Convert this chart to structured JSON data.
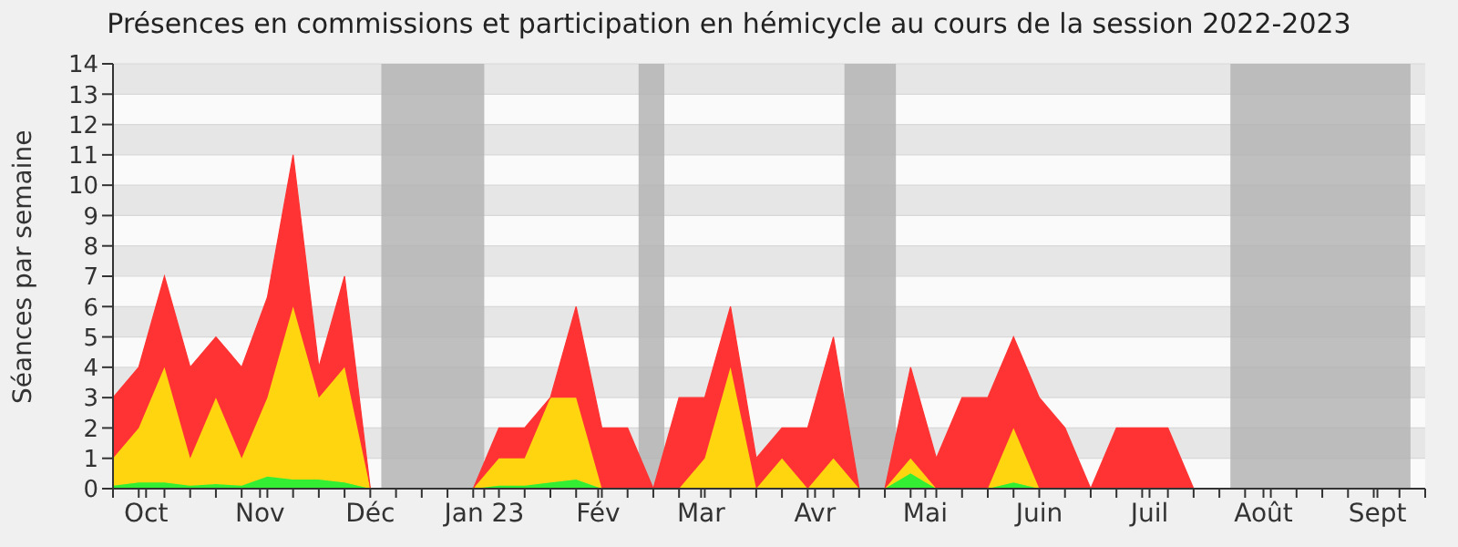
{
  "chart_data": {
    "type": "area",
    "stacked": true,
    "title": "Présences en commissions et participation en hémicycle au cours de la session 2022-2023",
    "ylabel": "Séances par semaine",
    "x": [
      "2022-09-22",
      "2022-09-29",
      "2022-10-06",
      "2022-10-13",
      "2022-10-20",
      "2022-10-27",
      "2022-11-03",
      "2022-11-10",
      "2022-11-17",
      "2022-11-24",
      "2022-12-01",
      "2022-12-08",
      "2022-12-15",
      "2022-12-22",
      "2022-12-29",
      "2023-01-05",
      "2023-01-12",
      "2023-01-19",
      "2023-01-26",
      "2023-02-02",
      "2023-02-09",
      "2023-02-16",
      "2023-02-23",
      "2023-03-02",
      "2023-03-09",
      "2023-03-16",
      "2023-03-23",
      "2023-03-30",
      "2023-04-06",
      "2023-04-13",
      "2023-04-20",
      "2023-04-27",
      "2023-05-04",
      "2023-05-11",
      "2023-05-18",
      "2023-05-25",
      "2023-06-01",
      "2023-06-08",
      "2023-06-15",
      "2023-06-22",
      "2023-06-29",
      "2023-07-06",
      "2023-07-13",
      "2023-07-20",
      "2023-07-27",
      "2023-08-03",
      "2023-08-10",
      "2023-08-17",
      "2023-08-24",
      "2023-08-31",
      "2023-09-07",
      "2023-09-14"
    ],
    "series": [
      {
        "color": "#33ee33",
        "values": [
          0.1,
          0.2,
          0.2,
          0.1,
          0.15,
          0.1,
          0.4,
          0.3,
          0.3,
          0.2,
          0,
          0,
          0,
          0,
          0,
          0.1,
          0.1,
          0.2,
          0.3,
          0,
          0,
          0,
          0,
          0,
          0,
          0,
          0,
          0,
          0,
          0,
          0,
          0.5,
          0,
          0,
          0,
          0.2,
          0,
          0,
          0,
          0,
          0,
          0,
          0,
          0,
          0,
          0,
          0,
          0,
          0,
          0,
          0,
          0
        ]
      },
      {
        "color": "#ffd510",
        "values": [
          0.9,
          1.8,
          3.8,
          0.9,
          2.85,
          0.9,
          2.6,
          5.7,
          2.7,
          3.8,
          0,
          0,
          0,
          0,
          0,
          0.9,
          0.9,
          2.8,
          2.7,
          0,
          0,
          0,
          0,
          1,
          4,
          0,
          1,
          0,
          1,
          0,
          0,
          0.5,
          0,
          0,
          0,
          1.8,
          0,
          0,
          0,
          0,
          0,
          0,
          0,
          0,
          0,
          0,
          0,
          0,
          0,
          0,
          0,
          0
        ]
      },
      {
        "color": "#ff3333",
        "values": [
          2,
          2,
          3,
          3,
          2,
          3,
          3.3,
          5,
          1,
          3,
          0,
          0,
          0,
          0,
          0,
          1,
          1,
          0,
          3,
          2,
          2,
          0,
          3,
          2,
          2,
          1,
          1,
          2,
          4,
          0,
          0,
          3,
          1,
          3,
          3,
          3,
          3,
          2,
          0,
          2,
          2,
          2,
          0,
          0,
          0,
          0,
          0,
          0,
          0,
          0,
          0,
          0
        ]
      }
    ],
    "xlim": [
      "2022-09-22",
      "2023-09-14"
    ],
    "xticks": [
      {
        "value": "2022-09-22",
        "label": null
      },
      {
        "value": "2022-09-29",
        "label": null
      },
      {
        "value": "2022-10-06",
        "label": null
      },
      {
        "value": "2022-10-13",
        "label": null
      },
      {
        "value": "2022-10-20",
        "label": null
      },
      {
        "value": "2022-10-27",
        "label": null
      },
      {
        "value": "2022-11-03",
        "label": null
      },
      {
        "value": "2022-11-10",
        "label": null
      },
      {
        "value": "2022-11-17",
        "label": null
      },
      {
        "value": "2022-11-24",
        "label": null
      },
      {
        "value": "2022-12-08",
        "label": null
      },
      {
        "value": "2022-12-15",
        "label": null
      },
      {
        "value": "2022-12-22",
        "label": null
      },
      {
        "value": "2022-12-29",
        "label": null
      },
      {
        "value": "2023-01-05",
        "label": null
      },
      {
        "value": "2023-01-12",
        "label": null
      },
      {
        "value": "2023-01-19",
        "label": null
      },
      {
        "value": "2023-01-26",
        "label": null
      },
      {
        "value": "2023-02-02",
        "label": null
      },
      {
        "value": "2023-02-09",
        "label": null
      },
      {
        "value": "2023-02-16",
        "label": null
      },
      {
        "value": "2023-02-23",
        "label": null
      },
      {
        "value": "2023-03-02",
        "label": null
      },
      {
        "value": "2023-03-09",
        "label": null
      },
      {
        "value": "2023-03-16",
        "label": null
      },
      {
        "value": "2023-03-23",
        "label": null
      },
      {
        "value": "2023-03-30",
        "label": null
      },
      {
        "value": "2023-04-06",
        "label": null
      },
      {
        "value": "2023-04-13",
        "label": null
      },
      {
        "value": "2023-04-20",
        "label": null
      },
      {
        "value": "2023-04-27",
        "label": null
      },
      {
        "value": "2023-05-04",
        "label": null
      },
      {
        "value": "2023-05-11",
        "label": null
      },
      {
        "value": "2023-05-18",
        "label": null
      },
      {
        "value": "2023-05-25",
        "label": null
      },
      {
        "value": "2023-06-08",
        "label": null
      },
      {
        "value": "2023-06-15",
        "label": null
      },
      {
        "value": "2023-06-22",
        "label": null
      },
      {
        "value": "2023-06-29",
        "label": null
      },
      {
        "value": "2023-07-06",
        "label": null
      },
      {
        "value": "2023-07-13",
        "label": null
      },
      {
        "value": "2023-07-20",
        "label": null
      },
      {
        "value": "2023-07-27",
        "label": null
      },
      {
        "value": "2023-08-03",
        "label": null
      },
      {
        "value": "2023-08-10",
        "label": null
      },
      {
        "value": "2023-08-17",
        "label": null
      },
      {
        "value": "2023-08-24",
        "label": null
      },
      {
        "value": "2023-08-31",
        "label": null
      },
      {
        "value": "2023-09-07",
        "label": null
      },
      {
        "value": "2023-09-14",
        "label": null
      },
      {
        "value": "2022-10-01",
        "label": "Oct"
      },
      {
        "value": "2022-11-01",
        "label": "Nov"
      },
      {
        "value": "2022-12-01",
        "label": "Déc"
      },
      {
        "value": "2023-01-01",
        "label": "Jan 23"
      },
      {
        "value": "2023-02-01",
        "label": "Fév"
      },
      {
        "value": "2023-03-01",
        "label": "Mar"
      },
      {
        "value": "2023-04-01",
        "label": "Avr"
      },
      {
        "value": "2023-05-01",
        "label": "Mai"
      },
      {
        "value": "2023-06-01",
        "label": "Juin"
      },
      {
        "value": "2023-07-01",
        "label": "Juil"
      },
      {
        "value": "2023-08-01",
        "label": "Août"
      },
      {
        "value": "2023-09-01",
        "label": "Sept"
      }
    ],
    "ylim": [
      0,
      14
    ],
    "yticks": [
      0,
      1,
      2,
      3,
      4,
      5,
      6,
      7,
      8,
      9,
      10,
      11,
      12,
      13,
      14
    ],
    "grid": "y",
    "bands": [
      {
        "axis": "x",
        "from": "2022-12-04",
        "to": "2023-01-01",
        "color": "#b4b4b4"
      },
      {
        "axis": "x",
        "from": "2023-02-12",
        "to": "2023-02-19",
        "color": "#b4b4b4"
      },
      {
        "axis": "x",
        "from": "2023-04-09",
        "to": "2023-04-23",
        "color": "#b4b4b4"
      },
      {
        "axis": "x",
        "from": "2023-07-23",
        "to": "2023-09-10",
        "color": "#b4b4b4"
      }
    ]
  }
}
